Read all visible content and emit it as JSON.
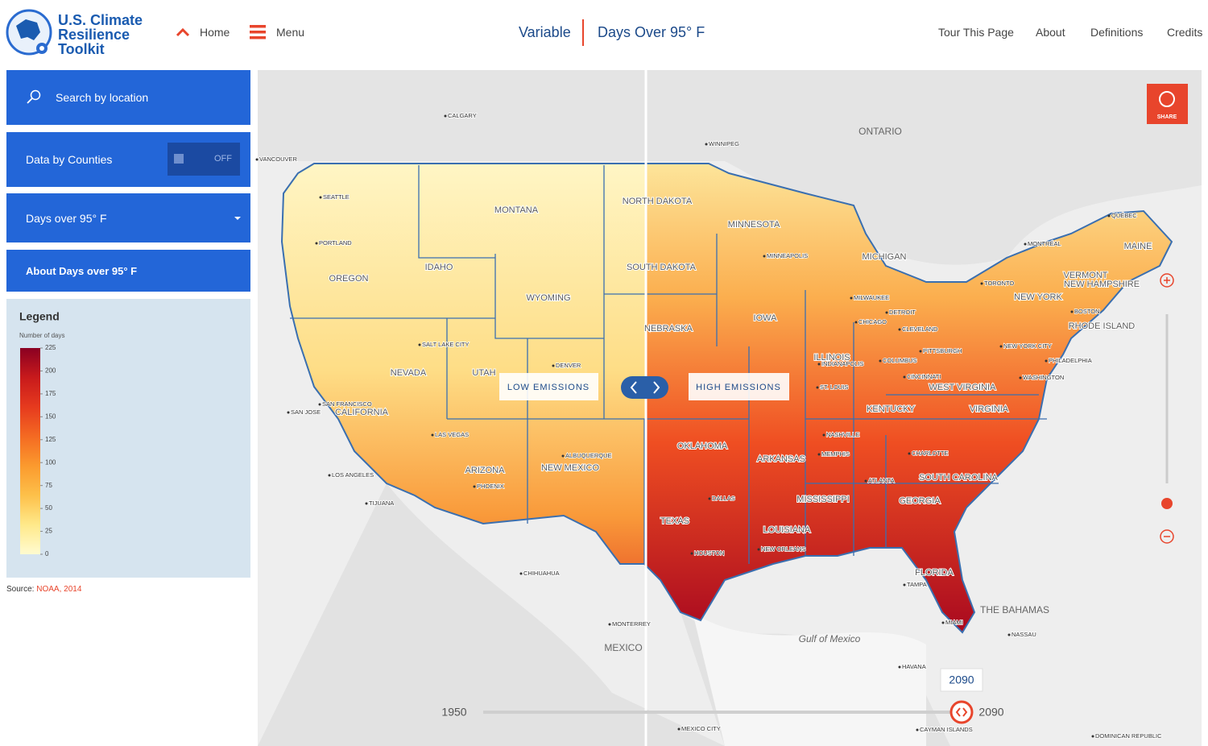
{
  "header": {
    "logo": [
      "U.S. Climate",
      "Resilience",
      "Toolkit"
    ],
    "home": "Home",
    "menu": "Menu",
    "variable_label": "Variable",
    "variable": "Days Over 95° F",
    "links": [
      "Tour This Page",
      "About",
      "Definitions",
      "Credits"
    ]
  },
  "sidebar": {
    "search": "Search by location",
    "counties": "Data by Counties",
    "toggle": "OFF",
    "variable": "Days over 95° F",
    "about": "About Days over 95° F"
  },
  "legend": {
    "title": "Legend",
    "subtitle": "Number of days",
    "ticks": [
      0,
      25,
      50,
      75,
      100,
      125,
      150,
      175,
      200,
      225
    ],
    "colors": [
      "#fffbd0",
      "#ffe98a",
      "#fdc04a",
      "#fb9a2e",
      "#f46a22",
      "#e63a1e",
      "#c81a1c",
      "#8a0022"
    ]
  },
  "source": {
    "prefix": "Source:",
    "link": "NOAA, 2014"
  },
  "map": {
    "left_label": "LOW EMISSIONS",
    "right_label": "HIGH EMISSIONS",
    "share": "SHARE",
    "states": [
      "MONTANA",
      "NORTH DAKOTA",
      "MINNESOTA",
      "OREGON",
      "IDAHO",
      "SOUTH DAKOTA",
      "WYOMING",
      "IOWA",
      "NEBRASKA",
      "NEVADA",
      "UTAH",
      "ILLINOIS",
      "CALIFORNIA",
      "ARIZONA",
      "NEW MEXICO",
      "OKLAHOMA",
      "ARKANSAS",
      "TEXAS",
      "LOUISIANA",
      "MISSISSIPPI",
      "GEORGIA",
      "SOUTH CAROLINA",
      "FLORIDA",
      "KENTUCKY",
      "VIRGINIA",
      "WEST VIRGINIA",
      "MICHIGAN",
      "NEW YORK",
      "VERMONT",
      "NEW HAMPSHIRE",
      "MAINE",
      "RHODE ISLAND"
    ],
    "regions": [
      "ONTARIO",
      "MEXICO",
      "THE BAHAMAS",
      "Gulf of Mexico"
    ],
    "cities": [
      "SEATTLE",
      "PORTLAND",
      "CALGARY",
      "WINNIPEG",
      "VANCOUVER",
      "MINNEAPOLIS",
      "SALT LAKE CITY",
      "DENVER",
      "SAN FRANCISCO",
      "SAN JOSE",
      "LAS VEGAS",
      "LOS ANGELES",
      "PHOENIX",
      "ALBUQUERQUE",
      "TIJUANA",
      "DALLAS",
      "HOUSTON",
      "NEW ORLEANS",
      "MEMPHIS",
      "NASHVILLE",
      "ATLANTA",
      "CHARLOTTE",
      "TAMPA",
      "MIAMI",
      "ST. LOUIS",
      "CHICAGO",
      "DETROIT",
      "MILWAUKEE",
      "CLEVELAND",
      "PITTSBURGH",
      "COLUMBUS",
      "CINCINNATI",
      "INDIANAPOLIS",
      "TORONTO",
      "MONTRÉAL",
      "QUÉBEC",
      "BOSTON",
      "NEW YORK CITY",
      "PHILADELPHIA",
      "WASHINGTON",
      "CHIHUAHUA",
      "MONTERREY",
      "HAVANA",
      "NASSAU",
      "CAYMAN ISLANDS",
      "DOMINICAN REPUBLIC",
      "MEXICO CITY"
    ]
  },
  "timeline": {
    "start": 1950,
    "end": 2090,
    "current": 2090
  }
}
